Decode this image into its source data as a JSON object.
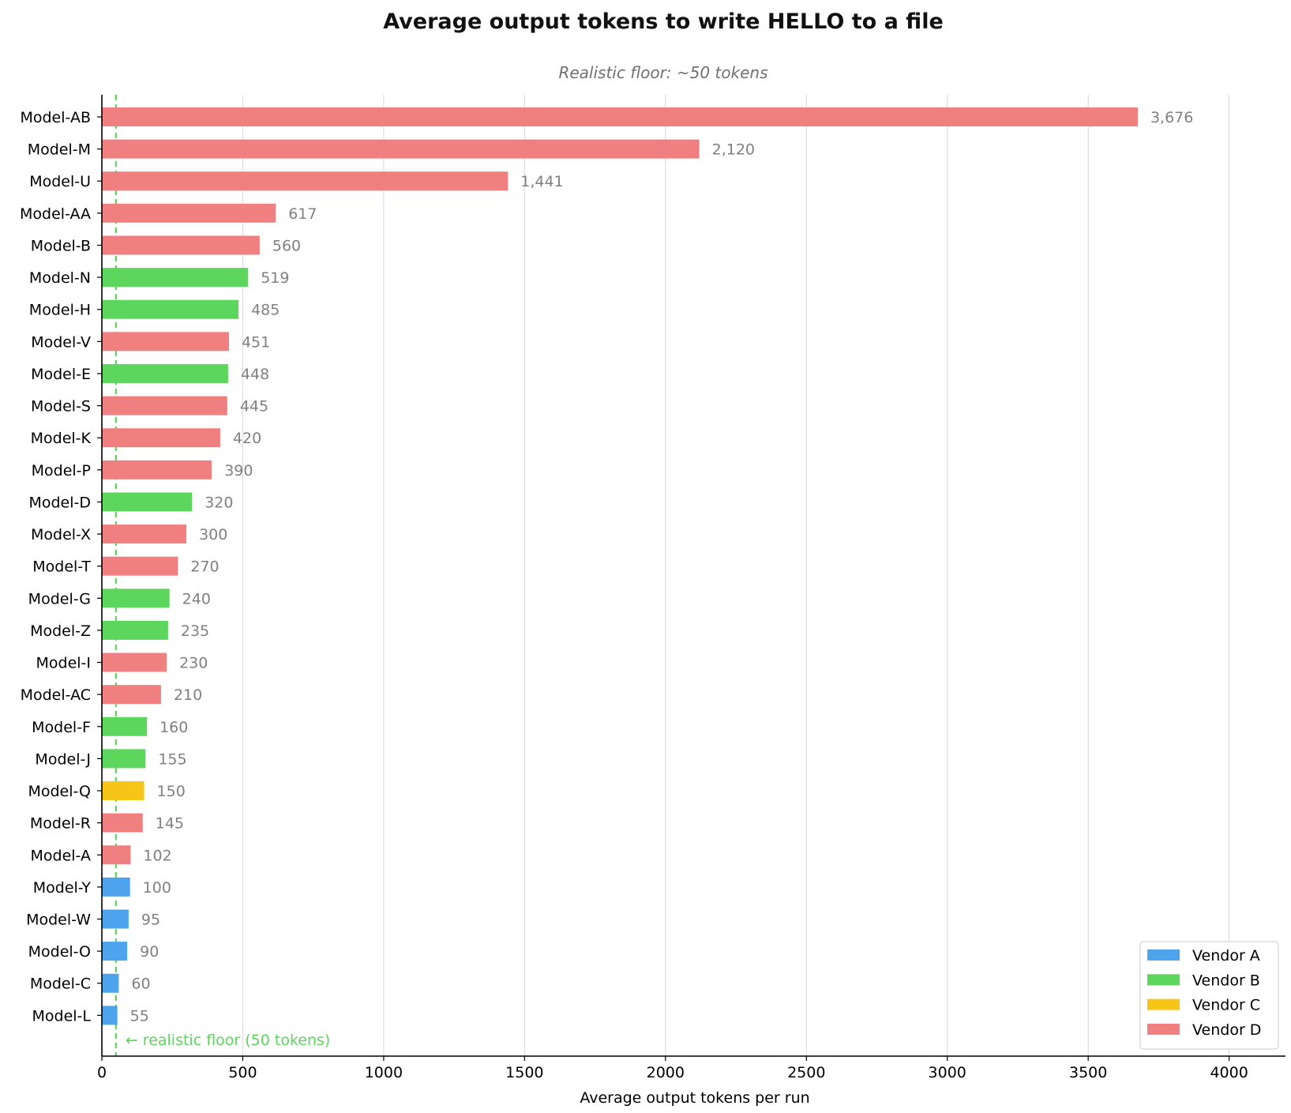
{
  "chart_data": {
    "type": "bar",
    "orientation": "horizontal",
    "title": "Average output tokens to write HELLO to a file",
    "subtitle": "Realistic floor: ~50 tokens",
    "xlabel": "Average output tokens per run",
    "ylabel": "",
    "xlim": [
      0,
      4200
    ],
    "xticks": [
      0,
      500,
      1000,
      1500,
      2000,
      2500,
      3000,
      3500,
      4000
    ],
    "grid": "vertical",
    "legend_position": "bottom-right",
    "reference_line": {
      "value": 50,
      "label": "← realistic floor (50 tokens)",
      "color": "#5cd65c"
    },
    "vendors": [
      {
        "name": "Vendor A",
        "color": "#4da3ec"
      },
      {
        "name": "Vendor B",
        "color": "#5cd65c"
      },
      {
        "name": "Vendor C",
        "color": "#f5c518"
      },
      {
        "name": "Vendor D",
        "color": "#f08080"
      }
    ],
    "bars": [
      {
        "label": "Model-AB",
        "value": 3676,
        "value_label": "3,676",
        "vendor": "Vendor D"
      },
      {
        "label": "Model-M",
        "value": 2120,
        "value_label": "2,120",
        "vendor": "Vendor D"
      },
      {
        "label": "Model-U",
        "value": 1441,
        "value_label": "1,441",
        "vendor": "Vendor D"
      },
      {
        "label": "Model-AA",
        "value": 617,
        "value_label": "617",
        "vendor": "Vendor D"
      },
      {
        "label": "Model-B",
        "value": 560,
        "value_label": "560",
        "vendor": "Vendor D"
      },
      {
        "label": "Model-N",
        "value": 519,
        "value_label": "519",
        "vendor": "Vendor B"
      },
      {
        "label": "Model-H",
        "value": 485,
        "value_label": "485",
        "vendor": "Vendor B"
      },
      {
        "label": "Model-V",
        "value": 451,
        "value_label": "451",
        "vendor": "Vendor D"
      },
      {
        "label": "Model-E",
        "value": 448,
        "value_label": "448",
        "vendor": "Vendor B"
      },
      {
        "label": "Model-S",
        "value": 445,
        "value_label": "445",
        "vendor": "Vendor D"
      },
      {
        "label": "Model-K",
        "value": 420,
        "value_label": "420",
        "vendor": "Vendor D"
      },
      {
        "label": "Model-P",
        "value": 390,
        "value_label": "390",
        "vendor": "Vendor D"
      },
      {
        "label": "Model-D",
        "value": 320,
        "value_label": "320",
        "vendor": "Vendor B"
      },
      {
        "label": "Model-X",
        "value": 300,
        "value_label": "300",
        "vendor": "Vendor D"
      },
      {
        "label": "Model-T",
        "value": 270,
        "value_label": "270",
        "vendor": "Vendor D"
      },
      {
        "label": "Model-G",
        "value": 240,
        "value_label": "240",
        "vendor": "Vendor B"
      },
      {
        "label": "Model-Z",
        "value": 235,
        "value_label": "235",
        "vendor": "Vendor B"
      },
      {
        "label": "Model-I",
        "value": 230,
        "value_label": "230",
        "vendor": "Vendor D"
      },
      {
        "label": "Model-AC",
        "value": 210,
        "value_label": "210",
        "vendor": "Vendor D"
      },
      {
        "label": "Model-F",
        "value": 160,
        "value_label": "160",
        "vendor": "Vendor B"
      },
      {
        "label": "Model-J",
        "value": 155,
        "value_label": "155",
        "vendor": "Vendor B"
      },
      {
        "label": "Model-Q",
        "value": 150,
        "value_label": "150",
        "vendor": "Vendor C"
      },
      {
        "label": "Model-R",
        "value": 145,
        "value_label": "145",
        "vendor": "Vendor D"
      },
      {
        "label": "Model-A",
        "value": 102,
        "value_label": "102",
        "vendor": "Vendor D"
      },
      {
        "label": "Model-Y",
        "value": 100,
        "value_label": "100",
        "vendor": "Vendor A"
      },
      {
        "label": "Model-W",
        "value": 95,
        "value_label": "95",
        "vendor": "Vendor A"
      },
      {
        "label": "Model-O",
        "value": 90,
        "value_label": "90",
        "vendor": "Vendor A"
      },
      {
        "label": "Model-C",
        "value": 60,
        "value_label": "60",
        "vendor": "Vendor A"
      },
      {
        "label": "Model-L",
        "value": 55,
        "value_label": "55",
        "vendor": "Vendor A"
      }
    ]
  }
}
